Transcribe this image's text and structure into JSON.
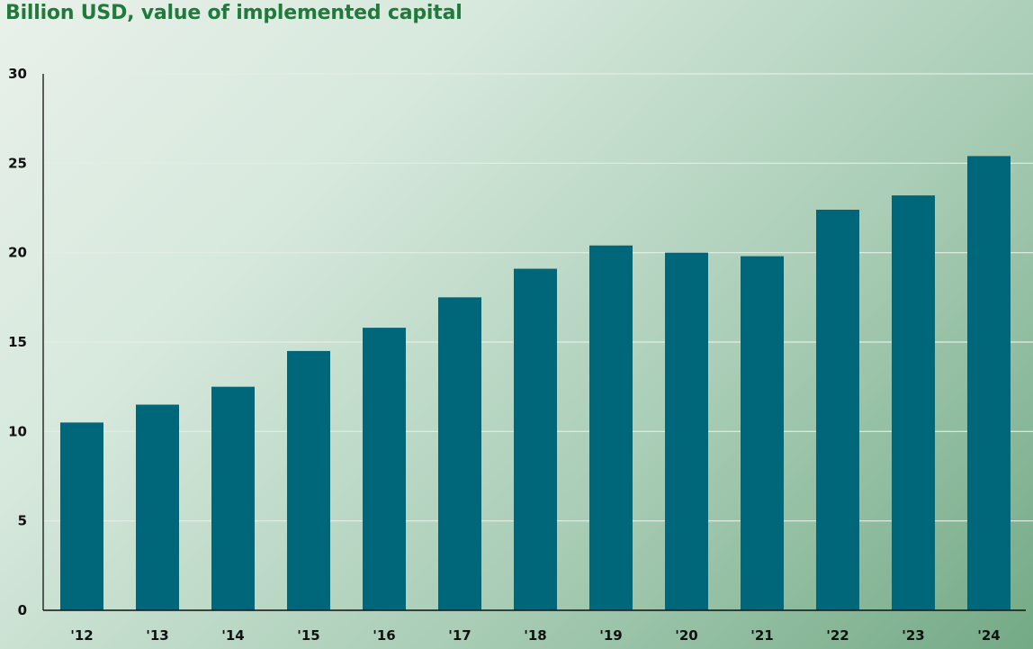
{
  "chart_data": {
    "type": "bar",
    "title": "Billion USD, value of implemented capital",
    "xlabel": "",
    "ylabel": "",
    "categories": [
      "'12",
      "'13",
      "'14",
      "'15",
      "'16",
      "'17",
      "'18",
      "'19",
      "'20",
      "'21",
      "'22",
      "'23",
      "'24"
    ],
    "values": [
      10.5,
      11.5,
      12.5,
      14.5,
      15.8,
      17.5,
      19.1,
      20.4,
      20.0,
      19.8,
      22.4,
      23.2,
      25.4
    ],
    "ylim": [
      0,
      30
    ],
    "yticks": [
      0,
      5,
      10,
      15,
      20,
      25,
      30
    ],
    "grid": true,
    "legend": "none",
    "colors": {
      "bar": "#00667a",
      "title": "#1f7a3c",
      "grid": "#e4ede6",
      "axis": "#111111"
    }
  }
}
